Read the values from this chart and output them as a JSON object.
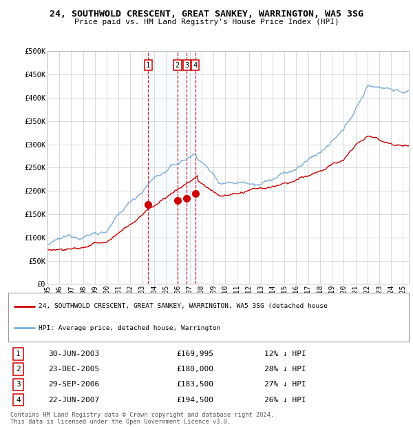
{
  "title": "24, SOUTHWOLD CRESCENT, GREAT SANKEY, WARRINGTON, WA5 3SG",
  "subtitle": "Price paid vs. HM Land Registry's House Price Index (HPI)",
  "ylabel_ticks": [
    "£0",
    "£50K",
    "£100K",
    "£150K",
    "£200K",
    "£250K",
    "£300K",
    "£350K",
    "£400K",
    "£450K",
    "£500K"
  ],
  "ytick_values": [
    0,
    50000,
    100000,
    150000,
    200000,
    250000,
    300000,
    350000,
    400000,
    450000,
    500000
  ],
  "ylim": [
    0,
    500000
  ],
  "xlim_start": 1995.0,
  "xlim_end": 2025.5,
  "hpi_color": "#7aabdb",
  "price_color": "#cc0000",
  "transaction_color": "#cc0000",
  "shade_color": "#ddeeff",
  "vline_color": "#cc0000",
  "legend_label_price": "24, SOUTHWOLD CRESCENT, GREAT SANKEY, WARRINGTON, WA5 3SG (detached house",
  "legend_label_hpi": "HPI: Average price, detached house, Warrington",
  "transactions": [
    {
      "id": 1,
      "date": "30-JUN-2003",
      "year": 2003.5,
      "price": 169995,
      "label": "1"
    },
    {
      "id": 2,
      "date": "23-DEC-2005",
      "year": 2005.97,
      "price": 180000,
      "label": "2"
    },
    {
      "id": 3,
      "date": "29-SEP-2006",
      "year": 2006.75,
      "price": 183500,
      "label": "3"
    },
    {
      "id": 4,
      "date": "22-JUN-2007",
      "year": 2007.47,
      "price": 194500,
      "label": "4"
    }
  ],
  "table_rows": [
    {
      "id": 1,
      "date": "30-JUN-2003",
      "price": "£169,995",
      "pct": "12% ↓ HPI"
    },
    {
      "id": 2,
      "date": "23-DEC-2005",
      "price": "£180,000",
      "pct": "28% ↓ HPI"
    },
    {
      "id": 3,
      "date": "29-SEP-2006",
      "price": "£183,500",
      "pct": "27% ↓ HPI"
    },
    {
      "id": 4,
      "date": "22-JUN-2007",
      "price": "£194,500",
      "pct": "26% ↓ HPI"
    }
  ],
  "footer": "Contains HM Land Registry data © Crown copyright and database right 2024.\nThis data is licensed under the Open Government Licence v3.0.",
  "background_color": "#ffffff",
  "grid_color": "#cccccc"
}
